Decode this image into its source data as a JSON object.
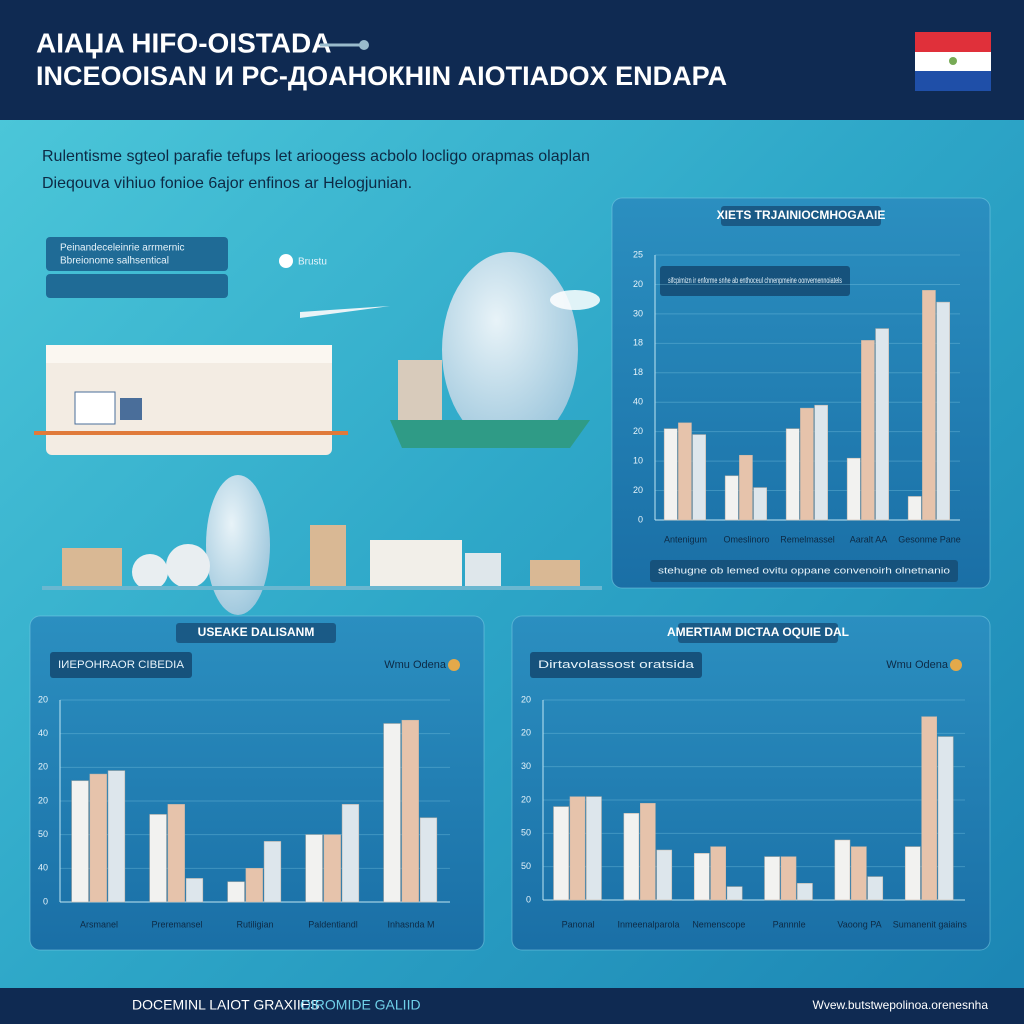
{
  "header": {
    "title_line_1": "AIAЏA HIFO-OISTADA",
    "title_line_2": "INCEOOISAN И PC-ДОAНOКНIN AIOTIADOX ENDAPA"
  },
  "intro": {
    "line_1": "Rulentisme sgteol parafie tefups let arioogess acbolo locligo orapmas olaplan",
    "line_2": "Dieqouva vihiuo fonioe 6ajor enfinos ar Helogjunian."
  },
  "illustration": {
    "badge_line_1": "Peinandeceleinrie arrmernic",
    "badge_line_2": "Bbreionome salhsentical",
    "icon_label": "Brustu"
  },
  "chart_data": [
    {
      "type": "bar",
      "title": "XIETS TRJAINIOCMHOGAAIE",
      "subtitle": "sifcpimizn ir enforme snhe ab enthoceul chnenpmeine oonvemennoiatels",
      "footer": "stehugne ob lemed ovitu oppane convenoirh olnetnanio",
      "categories": [
        "Antenigum",
        "Omeslinoro",
        "Remelmassel",
        "Aaralt AA",
        "Gesonme Pane"
      ],
      "series": [
        {
          "color": "#f2f2f0",
          "values": [
            3.1,
            1.5,
            3.1,
            2.1,
            0.8
          ]
        },
        {
          "color": "#e6c3ab",
          "values": [
            3.3,
            2.2,
            3.8,
            6.1,
            7.8
          ]
        },
        {
          "color": "#dde6ec",
          "values": [
            2.9,
            1.1,
            3.9,
            6.5,
            7.4
          ]
        }
      ],
      "ylim": [
        0,
        9
      ],
      "yticks": [
        {
          "value": 0,
          "label": "0"
        },
        {
          "value": 1,
          "label": "20"
        },
        {
          "value": 2,
          "label": "10"
        },
        {
          "value": 3,
          "label": "20"
        },
        {
          "value": 4,
          "label": "40"
        },
        {
          "value": 5,
          "label": "18"
        },
        {
          "value": 6,
          "label": "18"
        },
        {
          "value": 7,
          "label": "30"
        },
        {
          "value": 8,
          "label": "20"
        },
        {
          "value": 9,
          "label": "25"
        }
      ],
      "grid": true
    },
    {
      "type": "bar",
      "title": "USEAKE DALISANM",
      "subtitle": "IИEPOHRAOR CIBEDIA",
      "badge": "Wmu Odena",
      "categories": [
        "Arsmanel",
        "Preremansel",
        "Rutiligian",
        "Paldentiandl",
        "Inhasnda M"
      ],
      "series": [
        {
          "color": "#f2f2f0",
          "values": [
            3.6,
            2.6,
            0.6,
            2.0,
            5.3
          ]
        },
        {
          "color": "#e6c3ab",
          "values": [
            3.8,
            2.9,
            1.0,
            2.0,
            5.4
          ]
        },
        {
          "color": "#dde6ec",
          "values": [
            3.9,
            0.7,
            1.8,
            2.9,
            2.5
          ]
        }
      ],
      "ylim": [
        0,
        6
      ],
      "yticks": [
        {
          "value": 0,
          "label": "0"
        },
        {
          "value": 1,
          "label": "40"
        },
        {
          "value": 2,
          "label": "50"
        },
        {
          "value": 3,
          "label": "20"
        },
        {
          "value": 4,
          "label": "20"
        },
        {
          "value": 5,
          "label": "40"
        },
        {
          "value": 6,
          "label": "20"
        }
      ],
      "grid": true
    },
    {
      "type": "bar",
      "title": "AMERTIAM DICTAA OQUIE DAL",
      "subtitle": "Dirtavolassost oratsida",
      "badge": "Wmu Odena",
      "categories": [
        "Panonal",
        "Inmeenalparola",
        "Nemenscope",
        "Pannnle",
        "Vaoong PA",
        "Sumanenit gaiains"
      ],
      "series": [
        {
          "color": "#f2f2f0",
          "values": [
            2.8,
            2.6,
            1.4,
            1.3,
            1.8,
            1.6
          ]
        },
        {
          "color": "#e6c3ab",
          "values": [
            3.1,
            2.9,
            1.6,
            1.3,
            1.6,
            5.5
          ]
        },
        {
          "color": "#dde6ec",
          "values": [
            3.1,
            1.5,
            0.4,
            0.5,
            0.7,
            4.9
          ]
        }
      ],
      "ylim": [
        0,
        6
      ],
      "yticks": [
        {
          "value": 0,
          "label": "0"
        },
        {
          "value": 1,
          "label": "50"
        },
        {
          "value": 2,
          "label": "50"
        },
        {
          "value": 3,
          "label": "20"
        },
        {
          "value": 4,
          "label": "30"
        },
        {
          "value": 5,
          "label": "20"
        },
        {
          "value": 6,
          "label": "20"
        }
      ],
      "grid": true
    }
  ],
  "footer": {
    "left": "DOCEMINL LAIOT GRAXIIES",
    "middle": "OIROMIDE GALIID",
    "right": "Wvew.butstwepolinoa.orenesnha"
  }
}
